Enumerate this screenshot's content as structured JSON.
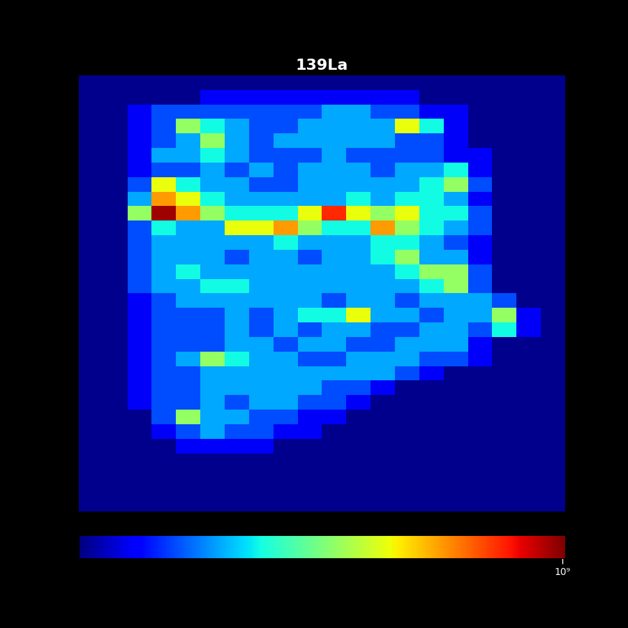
{
  "chart_data": {
    "type": "heatmap",
    "title": "139La",
    "tick_labels": false,
    "clim": [
      400,
      1100000000
    ],
    "cbar_ticks": [
      {
        "value": 1000000000,
        "label": "10⁹"
      }
    ],
    "cells": [
      [
        500,
        500,
        500,
        500,
        500,
        500,
        500,
        500,
        500,
        500,
        500,
        500,
        500,
        500,
        500,
        500,
        500,
        500,
        500,
        500
      ],
      [
        500,
        500,
        500,
        500,
        500,
        2000,
        2000,
        2000,
        2000,
        2000,
        2000,
        2000,
        2000,
        2000,
        500,
        500,
        500,
        500,
        500,
        500
      ],
      [
        500,
        500,
        2000,
        8000,
        8000,
        8000,
        8000,
        8000,
        8000,
        8000,
        30000,
        30000,
        8000,
        8000,
        2000,
        2000,
        500,
        500,
        500,
        500
      ],
      [
        500,
        500,
        2000,
        8000,
        1000000,
        100000,
        30000,
        8000,
        8000,
        30000,
        30000,
        30000,
        30000,
        5000000,
        100000,
        2000,
        500,
        500,
        500,
        500
      ],
      [
        500,
        500,
        2000,
        8000,
        30000,
        1000000,
        30000,
        8000,
        30000,
        30000,
        30000,
        30000,
        30000,
        8000,
        8000,
        2000,
        500,
        500,
        500,
        500
      ],
      [
        500,
        500,
        2000,
        30000,
        30000,
        100000,
        30000,
        8000,
        8000,
        8000,
        30000,
        8000,
        8000,
        8000,
        8000,
        2000,
        2000,
        500,
        500,
        500
      ],
      [
        500,
        500,
        2000,
        8000,
        8000,
        30000,
        8000,
        30000,
        8000,
        30000,
        30000,
        30000,
        8000,
        30000,
        30000,
        100000,
        2000,
        500,
        500,
        500
      ],
      [
        500,
        500,
        8000,
        5000000,
        100000,
        30000,
        30000,
        8000,
        8000,
        30000,
        30000,
        30000,
        30000,
        30000,
        100000,
        1000000,
        8000,
        500,
        500,
        500
      ],
      [
        500,
        500,
        30000,
        25000000,
        5000000,
        100000,
        30000,
        30000,
        30000,
        30000,
        30000,
        100000,
        30000,
        100000,
        100000,
        30000,
        2000,
        500,
        500,
        500
      ],
      [
        500,
        500,
        1000000,
        700000000,
        25000000,
        1000000,
        100000,
        100000,
        100000,
        5000000,
        150000000,
        5000000,
        1000000,
        5000000,
        100000,
        100000,
        8000,
        500,
        500,
        500
      ],
      [
        500,
        500,
        8000,
        100000,
        30000,
        30000,
        5000000,
        5000000,
        25000000,
        1000000,
        100000,
        100000,
        25000000,
        1000000,
        100000,
        30000,
        8000,
        500,
        500,
        500
      ],
      [
        500,
        500,
        8000,
        30000,
        30000,
        30000,
        30000,
        30000,
        100000,
        30000,
        30000,
        30000,
        100000,
        100000,
        30000,
        8000,
        2000,
        500,
        500,
        500
      ],
      [
        500,
        500,
        8000,
        30000,
        30000,
        30000,
        8000,
        30000,
        30000,
        8000,
        30000,
        30000,
        100000,
        1000000,
        30000,
        30000,
        2000,
        500,
        500,
        500
      ],
      [
        500,
        500,
        8000,
        30000,
        100000,
        30000,
        30000,
        30000,
        30000,
        30000,
        30000,
        30000,
        30000,
        100000,
        1000000,
        1000000,
        8000,
        500,
        500,
        500
      ],
      [
        500,
        500,
        8000,
        30000,
        30000,
        100000,
        100000,
        30000,
        30000,
        30000,
        30000,
        30000,
        30000,
        30000,
        100000,
        1000000,
        8000,
        500,
        500,
        500
      ],
      [
        500,
        500,
        2000,
        8000,
        30000,
        30000,
        30000,
        30000,
        30000,
        30000,
        8000,
        30000,
        30000,
        8000,
        30000,
        30000,
        30000,
        8000,
        500,
        500
      ],
      [
        500,
        500,
        2000,
        8000,
        8000,
        8000,
        30000,
        8000,
        30000,
        100000,
        100000,
        5000000,
        30000,
        30000,
        8000,
        30000,
        30000,
        1000000,
        2000,
        500
      ],
      [
        500,
        500,
        2000,
        8000,
        8000,
        8000,
        30000,
        8000,
        30000,
        8000,
        30000,
        30000,
        8000,
        8000,
        30000,
        30000,
        8000,
        100000,
        2000,
        500
      ],
      [
        500,
        500,
        2000,
        8000,
        8000,
        8000,
        30000,
        30000,
        8000,
        30000,
        30000,
        8000,
        8000,
        30000,
        30000,
        30000,
        2000,
        500,
        500,
        500
      ],
      [
        500,
        500,
        2000,
        8000,
        30000,
        1000000,
        100000,
        30000,
        30000,
        8000,
        8000,
        30000,
        30000,
        30000,
        8000,
        8000,
        2000,
        500,
        500,
        500
      ],
      [
        500,
        500,
        2000,
        8000,
        8000,
        30000,
        30000,
        30000,
        30000,
        30000,
        30000,
        30000,
        30000,
        8000,
        2000,
        500,
        500,
        500,
        500,
        500
      ],
      [
        500,
        500,
        2000,
        8000,
        8000,
        30000,
        30000,
        30000,
        30000,
        30000,
        8000,
        8000,
        2000,
        500,
        500,
        500,
        500,
        500,
        500,
        500
      ],
      [
        500,
        500,
        2000,
        8000,
        8000,
        30000,
        8000,
        30000,
        30000,
        8000,
        8000,
        2000,
        500,
        500,
        500,
        500,
        500,
        500,
        500,
        500
      ],
      [
        500,
        500,
        500,
        8000,
        1000000,
        30000,
        30000,
        8000,
        8000,
        2000,
        2000,
        500,
        500,
        500,
        500,
        500,
        500,
        500,
        500,
        500
      ],
      [
        500,
        500,
        500,
        2000,
        8000,
        30000,
        8000,
        8000,
        2000,
        2000,
        500,
        500,
        500,
        500,
        500,
        500,
        500,
        500,
        500,
        500
      ],
      [
        500,
        500,
        500,
        500,
        2000,
        2000,
        2000,
        2000,
        500,
        500,
        500,
        500,
        500,
        500,
        500,
        500,
        500,
        500,
        500,
        500
      ],
      [
        500,
        500,
        500,
        500,
        500,
        500,
        500,
        500,
        500,
        500,
        500,
        500,
        500,
        500,
        500,
        500,
        500,
        500,
        500,
        500
      ],
      [
        500,
        500,
        500,
        500,
        500,
        500,
        500,
        500,
        500,
        500,
        500,
        500,
        500,
        500,
        500,
        500,
        500,
        500,
        500,
        500
      ],
      [
        500,
        500,
        500,
        500,
        500,
        500,
        500,
        500,
        500,
        500,
        500,
        500,
        500,
        500,
        500,
        500,
        500,
        500,
        500,
        500
      ],
      [
        500,
        500,
        500,
        500,
        500,
        500,
        500,
        500,
        500,
        500,
        500,
        500,
        500,
        500,
        500,
        500,
        500,
        500,
        500,
        500
      ]
    ]
  }
}
